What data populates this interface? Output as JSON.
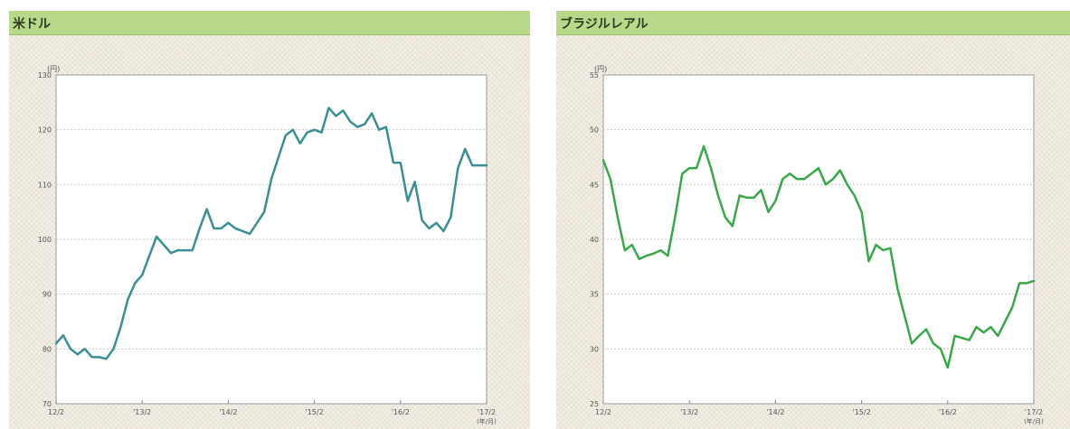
{
  "header_note": "",
  "chart_data": [
    {
      "type": "line",
      "title": "米ドル",
      "ylabel": "(円)",
      "unit_note": "(年/月)",
      "ylim": [
        70,
        130
      ],
      "yticks": [
        70,
        80,
        90,
        100,
        110,
        120,
        130
      ],
      "xlim": [
        0,
        60
      ],
      "xticks": [
        {
          "pos": 0,
          "label": "12/2"
        },
        {
          "pos": 12,
          "label": "'13/2"
        },
        {
          "pos": 24,
          "label": "'14/2"
        },
        {
          "pos": 36,
          "label": "'15/2"
        },
        {
          "pos": 48,
          "label": "'16/2"
        },
        {
          "pos": 60,
          "label": "'17/2"
        }
      ],
      "color": "#3a8f94",
      "grid": true,
      "series": [
        {
          "values": [
            81.0,
            82.5,
            80.0,
            79.0,
            80.0,
            78.5,
            78.5,
            78.2,
            80.0,
            84.0,
            89.0,
            92.0,
            93.5,
            97.0,
            100.5,
            99.0,
            97.5,
            98.0,
            98.0,
            98.0,
            102.0,
            105.5,
            102.0,
            102.0,
            103.0,
            102.0,
            101.5,
            101.0,
            103.0,
            105.0,
            111.0,
            115.0,
            119.0,
            120.0,
            117.5,
            119.5,
            120.0,
            119.5,
            124.0,
            122.5,
            123.5,
            121.5,
            120.5,
            121.0,
            123.0,
            120.0,
            120.5,
            114.0,
            114.0,
            107.0,
            110.5,
            103.5,
            102.0,
            103.0,
            101.5,
            104.0,
            113.0,
            116.5,
            113.5,
            113.5,
            113.5
          ]
        }
      ]
    },
    {
      "type": "line",
      "title": "ブラジルレアル",
      "ylabel": "(円)",
      "unit_note": "(年/月)",
      "ylim": [
        25,
        55
      ],
      "yticks": [
        25,
        30,
        35,
        40,
        45,
        50,
        55
      ],
      "xlim": [
        0,
        60
      ],
      "xticks": [
        {
          "pos": 0,
          "label": "12/2"
        },
        {
          "pos": 12,
          "label": "'13/2"
        },
        {
          "pos": 24,
          "label": "'14/2"
        },
        {
          "pos": 36,
          "label": "'15/2"
        },
        {
          "pos": 48,
          "label": "'16/2"
        },
        {
          "pos": 60,
          "label": "'17/2"
        }
      ],
      "color": "#3aa84a",
      "grid": true,
      "series": [
        {
          "values": [
            47.2,
            45.5,
            42.0,
            39.0,
            39.5,
            38.2,
            38.5,
            38.7,
            39.0,
            38.5,
            42.0,
            46.0,
            46.5,
            46.5,
            48.5,
            46.5,
            44.0,
            42.0,
            41.2,
            44.0,
            43.8,
            43.8,
            44.5,
            42.5,
            43.5,
            45.5,
            46.0,
            45.5,
            45.5,
            46.0,
            46.5,
            45.0,
            45.5,
            46.3,
            45.0,
            44.0,
            42.5,
            38.0,
            39.5,
            39.0,
            39.2,
            35.5,
            33.0,
            30.5,
            31.2,
            31.8,
            30.5,
            30.0,
            28.3,
            31.2,
            31.0,
            30.8,
            32.0,
            31.5,
            32.0,
            31.2,
            32.5,
            33.8,
            36.0,
            36.0,
            36.2
          ]
        }
      ]
    }
  ]
}
